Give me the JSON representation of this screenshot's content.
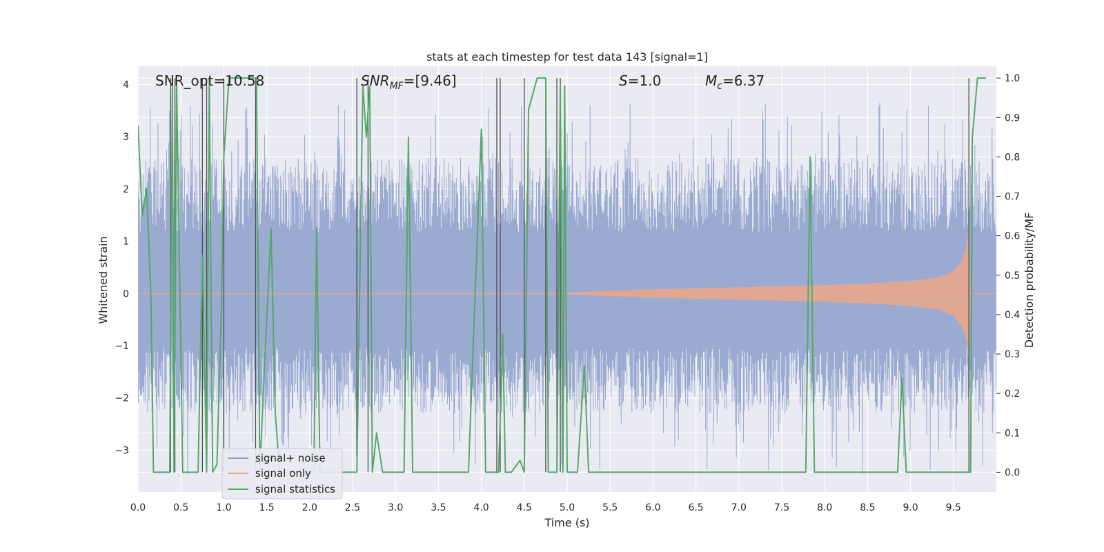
{
  "chart_data": {
    "type": "line",
    "title": "stats at each timestep for test data 143 [signal=1]",
    "xlabel": "Time (s)",
    "ylabel_left": "Whitened strain",
    "ylabel_right": "Detection probability/MF",
    "xlim": [
      0,
      10
    ],
    "ylim_left": [
      -3.8,
      4.35
    ],
    "ylim_right": [
      -0.05,
      1.03
    ],
    "x_ticks": [
      "0.0",
      "0.5",
      "1.0",
      "1.5",
      "2.0",
      "2.5",
      "3.0",
      "3.5",
      "4.0",
      "4.5",
      "5.0",
      "5.5",
      "6.0",
      "6.5",
      "7.0",
      "7.5",
      "8.0",
      "8.5",
      "9.0",
      "9.5"
    ],
    "x_tick_values": [
      0,
      0.5,
      1.0,
      1.5,
      2.0,
      2.5,
      3.0,
      3.5,
      4.0,
      4.5,
      5.0,
      5.5,
      6.0,
      6.5,
      7.0,
      7.5,
      8.0,
      8.5,
      9.0,
      9.5
    ],
    "y_left_ticks": [
      "4",
      "3",
      "2",
      "1",
      "0",
      "−1",
      "−2",
      "−3"
    ],
    "y_left_tick_values": [
      4,
      3,
      2,
      1,
      0,
      -1,
      -2,
      -3
    ],
    "y_right_ticks": [
      "1.0",
      "0.9",
      "0.8",
      "0.7",
      "0.6",
      "0.5",
      "0.4",
      "0.3",
      "0.2",
      "0.1",
      "0.0"
    ],
    "y_right_tick_values": [
      1.0,
      0.9,
      0.8,
      0.7,
      0.6,
      0.5,
      0.4,
      0.3,
      0.2,
      0.1,
      0.0
    ],
    "grid": true,
    "legend_placement": "lower-left",
    "annotations": {
      "snr_opt": "SNR_opt=10.58",
      "snr_mf_base": "SNR",
      "snr_mf_sub": "MF",
      "snr_mf_rest": "=[9.46]",
      "s_base": "S",
      "s_rest": "=1.0",
      "mc_base": "M",
      "mc_sub": "c",
      "mc_rest": "=6.37"
    },
    "series": [
      {
        "name": "signal+ noise",
        "color": "#8c9fcb",
        "axis": "left",
        "description_values": {
          "typical_max": 2.6,
          "typical_min": -2.3,
          "peak_max": 3.65,
          "peak_min": -3.5
        }
      },
      {
        "name": "signal only",
        "color": "#e8a68b",
        "axis": "left",
        "envelope_points": [
          [
            0,
            0.0
          ],
          [
            4.9,
            0.01
          ],
          [
            5.5,
            0.05
          ],
          [
            6.0,
            0.08
          ],
          [
            6.5,
            0.1
          ],
          [
            7.0,
            0.12
          ],
          [
            7.5,
            0.14
          ],
          [
            8.0,
            0.16
          ],
          [
            8.5,
            0.19
          ],
          [
            9.0,
            0.24
          ],
          [
            9.3,
            0.3
          ],
          [
            9.5,
            0.42
          ],
          [
            9.6,
            0.65
          ],
          [
            9.65,
            0.9
          ],
          [
            9.68,
            1.35
          ],
          [
            9.7,
            0.0
          ],
          [
            10.0,
            0.0
          ]
        ]
      },
      {
        "name": "signal statistics",
        "color": "#55a868",
        "axis": "right",
        "points": [
          [
            0.0,
            0.88
          ],
          [
            0.05,
            0.65
          ],
          [
            0.1,
            0.72
          ],
          [
            0.15,
            0.45
          ],
          [
            0.18,
            0.0
          ],
          [
            0.37,
            0.0
          ],
          [
            0.4,
            0.98
          ],
          [
            0.42,
            0.0
          ],
          [
            0.45,
            0.98
          ],
          [
            0.5,
            0.3
          ],
          [
            0.52,
            0.0
          ],
          [
            0.7,
            0.0
          ],
          [
            0.75,
            0.55
          ],
          [
            0.8,
            0.0
          ],
          [
            0.83,
            1.0
          ],
          [
            0.87,
            0.0
          ],
          [
            0.92,
            0.02
          ],
          [
            0.97,
            0.4
          ],
          [
            1.0,
            0.8
          ],
          [
            1.06,
            1.0
          ],
          [
            1.38,
            1.0
          ],
          [
            1.42,
            0.0
          ],
          [
            1.48,
            0.3
          ],
          [
            1.55,
            0.62
          ],
          [
            1.6,
            0.15
          ],
          [
            1.65,
            0.0
          ],
          [
            2.05,
            0.0
          ],
          [
            2.08,
            0.62
          ],
          [
            2.12,
            0.0
          ],
          [
            2.55,
            0.0
          ],
          [
            2.62,
            0.98
          ],
          [
            2.66,
            0.85
          ],
          [
            2.7,
            0.98
          ],
          [
            2.73,
            0.0
          ],
          [
            2.78,
            0.1
          ],
          [
            2.85,
            0.0
          ],
          [
            3.1,
            0.0
          ],
          [
            3.15,
            0.85
          ],
          [
            3.2,
            0.0
          ],
          [
            3.85,
            0.0
          ],
          [
            4.0,
            0.87
          ],
          [
            4.05,
            0.0
          ],
          [
            4.2,
            0.0
          ],
          [
            4.25,
            0.35
          ],
          [
            4.28,
            0.0
          ],
          [
            4.35,
            0.0
          ],
          [
            4.45,
            0.03
          ],
          [
            4.5,
            0.0
          ],
          [
            4.55,
            0.92
          ],
          [
            4.65,
            1.0
          ],
          [
            4.75,
            1.0
          ],
          [
            4.78,
            0.0
          ],
          [
            4.88,
            0.0
          ],
          [
            4.92,
            0.98
          ],
          [
            4.95,
            0.0
          ],
          [
            4.97,
            0.98
          ],
          [
            5.0,
            0.0
          ],
          [
            5.12,
            0.0
          ],
          [
            5.2,
            0.27
          ],
          [
            5.25,
            0.0
          ],
          [
            7.78,
            0.0
          ],
          [
            7.83,
            0.8
          ],
          [
            7.88,
            0.0
          ],
          [
            8.85,
            0.0
          ],
          [
            8.9,
            0.24
          ],
          [
            8.95,
            0.0
          ],
          [
            9.7,
            0.0
          ],
          [
            9.72,
            0.85
          ],
          [
            9.78,
            1.0
          ],
          [
            9.88,
            1.0
          ]
        ]
      }
    ],
    "vertical_lines_x": [
      0.38,
      0.43,
      0.75,
      0.8,
      1.0,
      1.37,
      2.55,
      2.68,
      4.18,
      4.22,
      4.5,
      4.75,
      4.88,
      4.92,
      9.68
    ],
    "vertical_line_color": "#4d4d4d"
  }
}
